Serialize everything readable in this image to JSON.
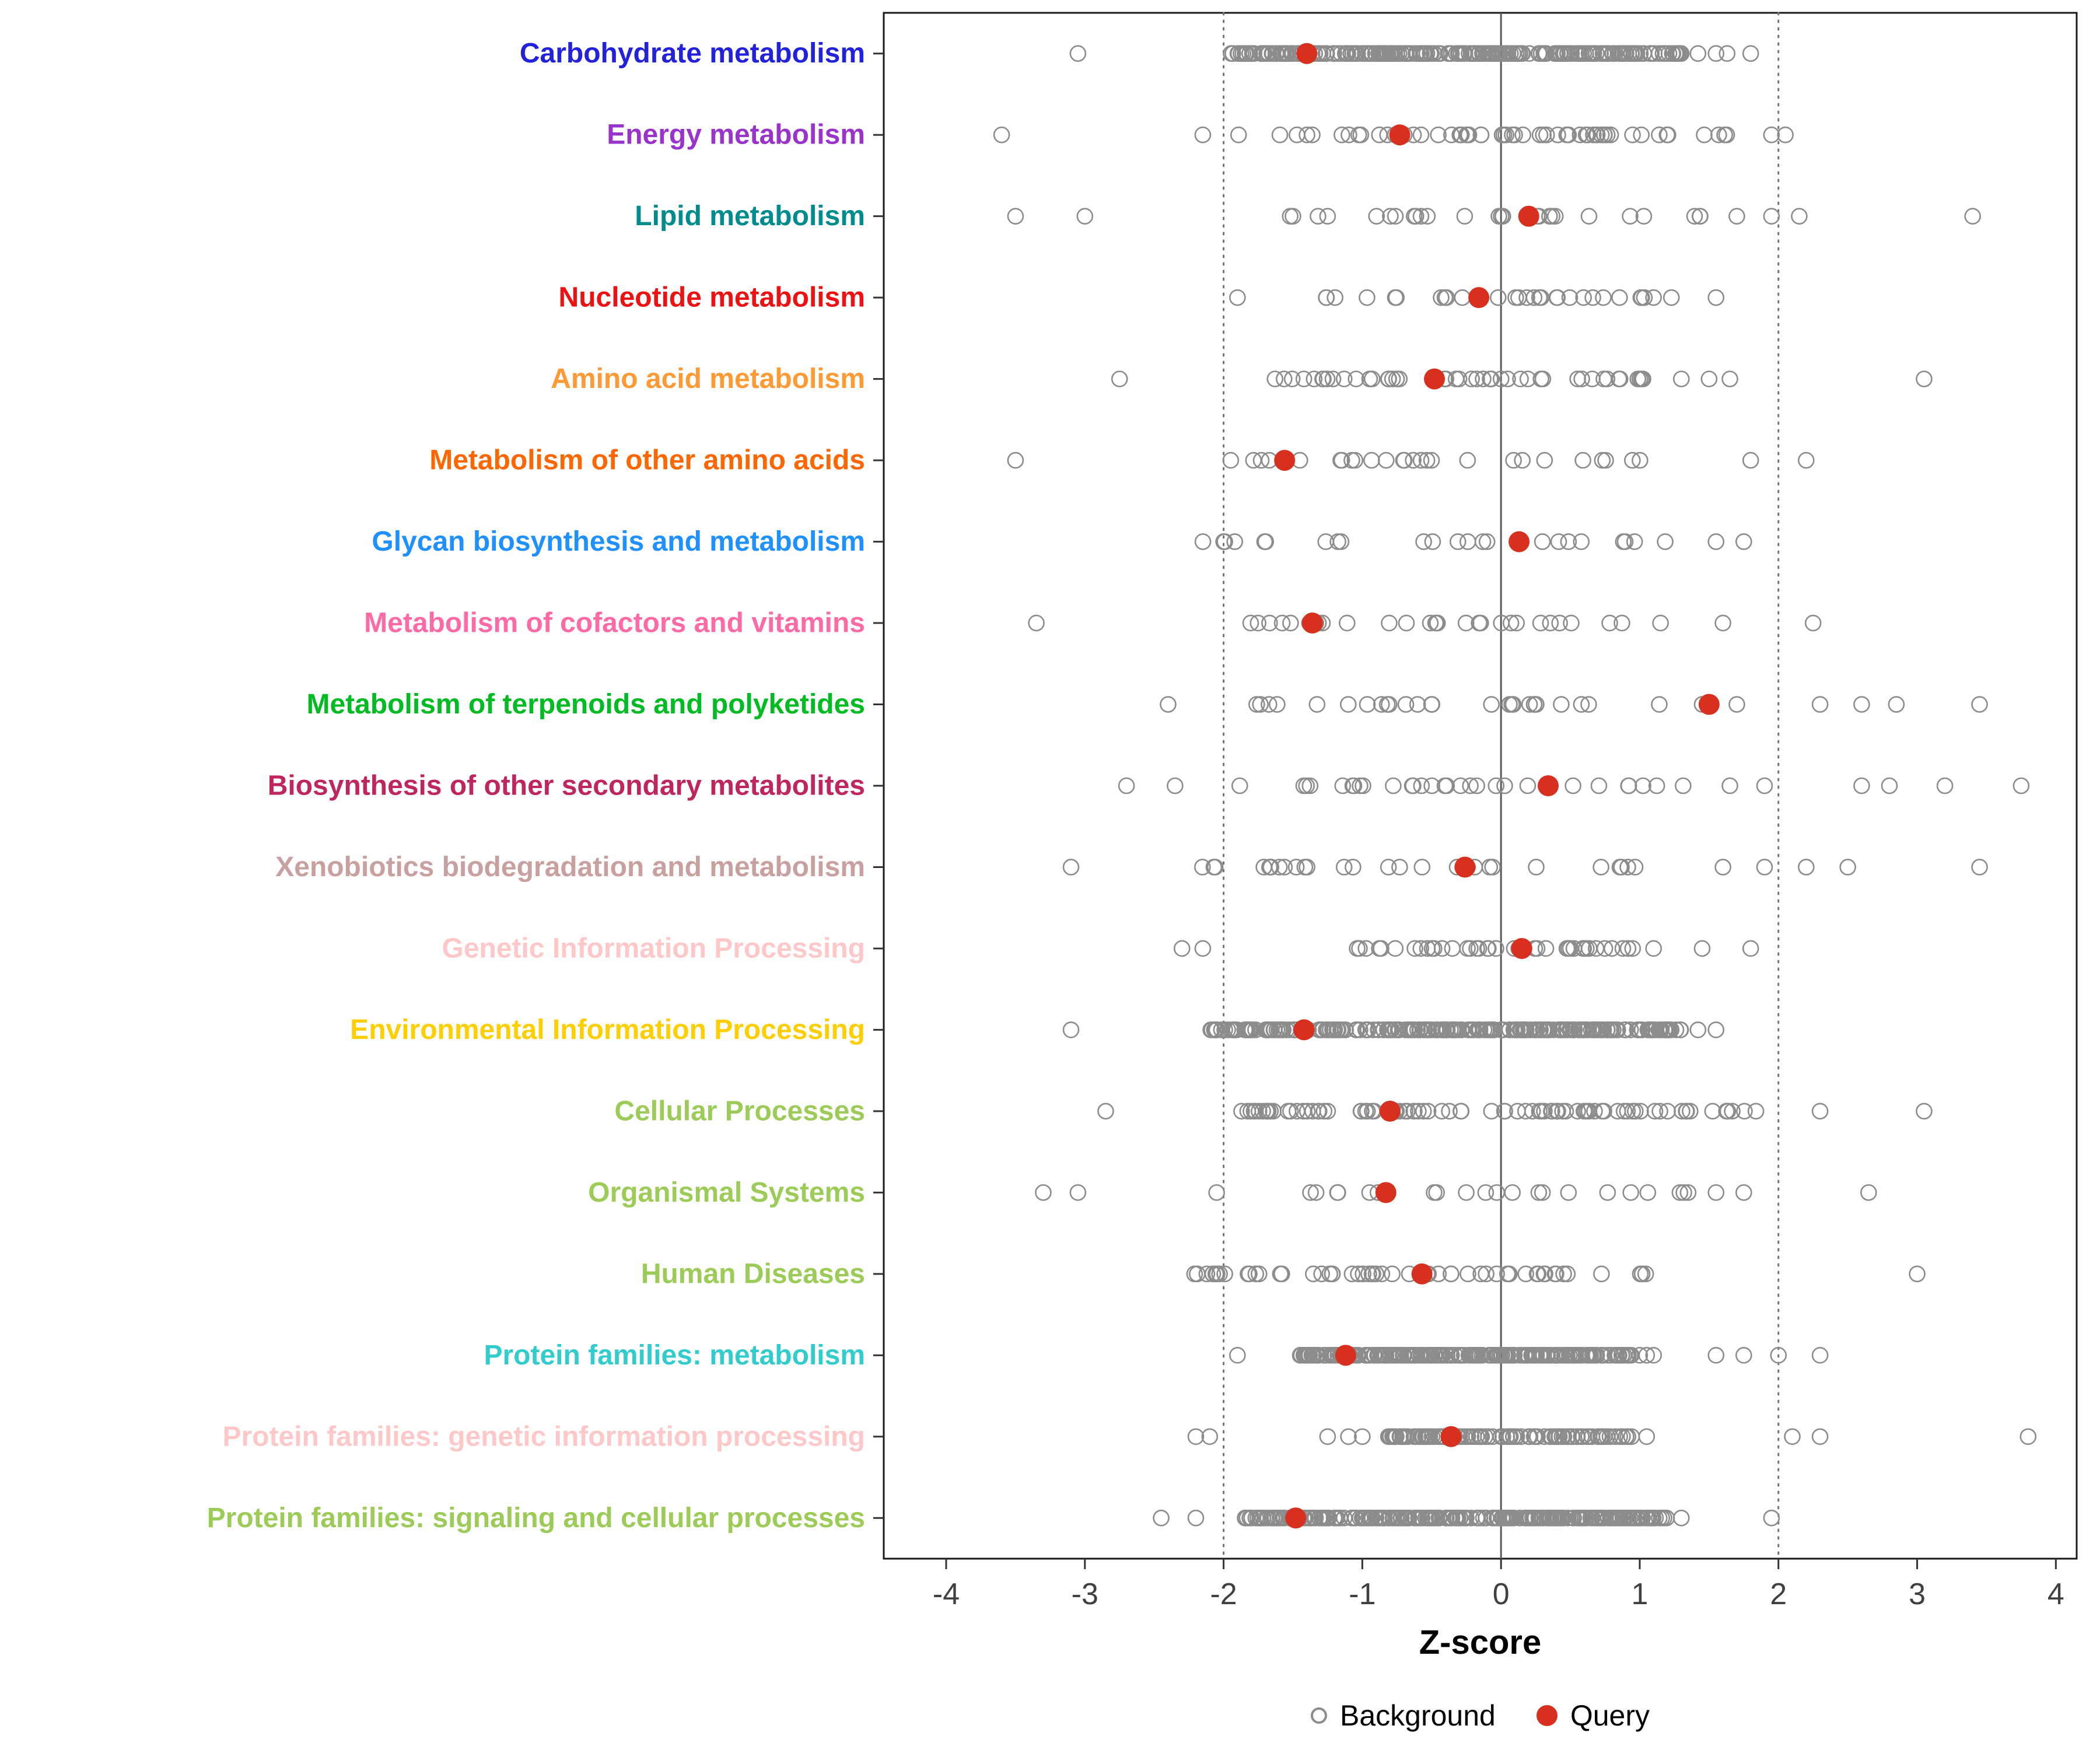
{
  "figure": {
    "colors": {
      "query": "#D7301F",
      "background_stroke": "#8C8C8C",
      "axis_text": "#404040",
      "panel_border": "#1a1a1a",
      "ref_dotted": "#737373",
      "ref_solid": "#595959"
    }
  },
  "chart_data": {
    "type": "scatter",
    "title": "",
    "xlabel": "Z-score",
    "ylabel": "",
    "xlim": [
      -4.45,
      4.15
    ],
    "x_ticks": [
      -4,
      -3,
      -2,
      -1,
      0,
      1,
      2,
      3,
      4
    ],
    "reference_lines": {
      "dotted": [
        -2,
        2
      ],
      "solid": [
        0
      ]
    },
    "legend_labels": {
      "background": "Background",
      "query": "Query"
    },
    "legend_position": "bottom",
    "grid": false,
    "rows": [
      {
        "label": "Carbohydrate metabolism",
        "color": "#2222DD",
        "query": -1.4,
        "band": {
          "min": -1.95,
          "max": 1.3,
          "count": 260
        },
        "outliers": [
          -3.05,
          1.42,
          1.55,
          1.63,
          1.8
        ]
      },
      {
        "label": "Energy metabolism",
        "color": "#9933CC",
        "query": -0.73,
        "band": {
          "min": -1.9,
          "max": 1.65,
          "count": 60
        },
        "outliers": [
          -3.6,
          -2.15,
          1.95,
          2.05
        ]
      },
      {
        "label": "Lipid metabolism",
        "color": "#008C8C",
        "query": 0.2,
        "band": {
          "min": -1.55,
          "max": 1.55,
          "count": 26
        },
        "outliers": [
          -3.5,
          -3.0,
          1.7,
          1.95,
          2.15,
          3.4
        ]
      },
      {
        "label": "Nucleotide metabolism",
        "color": "#EE1111",
        "query": -0.16,
        "band": {
          "min": -1.4,
          "max": 1.3,
          "count": 30
        },
        "outliers": [
          -1.9,
          1.55
        ]
      },
      {
        "label": "Amino acid metabolism",
        "color": "#FF9933",
        "query": -0.48,
        "band": {
          "min": -1.65,
          "max": 1.05,
          "count": 45
        },
        "outliers": [
          -2.75,
          1.3,
          1.5,
          1.65,
          3.05
        ]
      },
      {
        "label": "Metabolism of other amino acids",
        "color": "#FF6600",
        "query": -1.56,
        "band": {
          "min": -2.15,
          "max": 1.45,
          "count": 26
        },
        "outliers": [
          -3.5,
          1.8,
          2.2
        ]
      },
      {
        "label": "Glycan biosynthesis and metabolism",
        "color": "#1E90FF",
        "query": 0.13,
        "band": {
          "min": -2.3,
          "max": 1.35,
          "count": 24
        },
        "outliers": [
          1.55,
          1.75
        ]
      },
      {
        "label": "Metabolism of cofactors and vitamins",
        "color": "#FF69A5",
        "query": -1.36,
        "band": {
          "min": -1.85,
          "max": 0.95,
          "count": 28
        },
        "outliers": [
          -3.35,
          1.15,
          1.6,
          2.25
        ]
      },
      {
        "label": "Metabolism of terpenoids and polyketides",
        "color": "#00BB22",
        "query": 1.5,
        "band": {
          "min": -1.85,
          "max": 1.25,
          "count": 26
        },
        "outliers": [
          -2.4,
          1.45,
          1.7,
          2.3,
          2.6,
          2.85,
          3.45
        ]
      },
      {
        "label": "Biosynthesis of other secondary metabolites",
        "color": "#C0265E",
        "query": 0.34,
        "band": {
          "min": -2.1,
          "max": 1.35,
          "count": 30
        },
        "outliers": [
          -2.7,
          -2.35,
          1.65,
          1.9,
          2.6,
          2.8,
          3.2,
          3.75
        ]
      },
      {
        "label": "Xenobiotics biodegradation and metabolism",
        "color": "#C9A0A0",
        "query": -0.26,
        "band": {
          "min": -2.2,
          "max": 1.3,
          "count": 28
        },
        "outliers": [
          -3.1,
          1.6,
          1.9,
          2.2,
          2.5,
          3.45
        ]
      },
      {
        "label": "Genetic Information Processing",
        "color": "#FFC8C8",
        "query": 0.15,
        "band": {
          "min": -1.05,
          "max": 0.95,
          "count": 40
        },
        "outliers": [
          -2.3,
          -2.15,
          1.1,
          1.45,
          1.8
        ]
      },
      {
        "label": "Environmental Information Processing",
        "color": "#FFCE00",
        "query": -1.42,
        "band": {
          "min": -2.1,
          "max": 1.3,
          "count": 300
        },
        "outliers": [
          -3.1,
          1.42,
          1.55
        ]
      },
      {
        "label": "Cellular Processes",
        "color": "#9CCB58",
        "query": -0.8,
        "band": {
          "min": -1.95,
          "max": 1.85,
          "count": 90
        },
        "outliers": [
          -2.85,
          2.3,
          3.05
        ]
      },
      {
        "label": "Organismal Systems",
        "color": "#9CCB58",
        "query": -0.83,
        "band": {
          "min": -1.45,
          "max": 1.35,
          "count": 22
        },
        "outliers": [
          -3.3,
          -3.05,
          -2.05,
          1.55,
          1.75,
          2.65
        ]
      },
      {
        "label": "Human Diseases",
        "color": "#9CCB58",
        "query": -0.57,
        "band": {
          "min": -2.25,
          "max": 1.2,
          "count": 55
        },
        "outliers": [
          3.0
        ]
      },
      {
        "label": "Protein families: metabolism",
        "color": "#33CCCC",
        "query": -1.12,
        "band": {
          "min": -1.45,
          "max": 0.95,
          "count": 260
        },
        "outliers": [
          -1.9,
          1.0,
          1.05,
          1.1,
          1.55,
          1.75,
          2.0,
          2.3
        ]
      },
      {
        "label": "Protein families: genetic information processing",
        "color": "#FFC8C8",
        "query": -0.36,
        "band": {
          "min": -0.85,
          "max": 0.95,
          "count": 120
        },
        "outliers": [
          -2.2,
          -2.1,
          -1.25,
          -1.1,
          -1.0,
          1.05,
          2.1,
          2.3,
          3.8
        ]
      },
      {
        "label": "Protein families: signaling and cellular processes",
        "color": "#9CCB58",
        "query": -1.48,
        "band": {
          "min": -1.85,
          "max": 1.2,
          "count": 280
        },
        "outliers": [
          -2.45,
          -2.2,
          1.3,
          1.95
        ]
      }
    ]
  }
}
